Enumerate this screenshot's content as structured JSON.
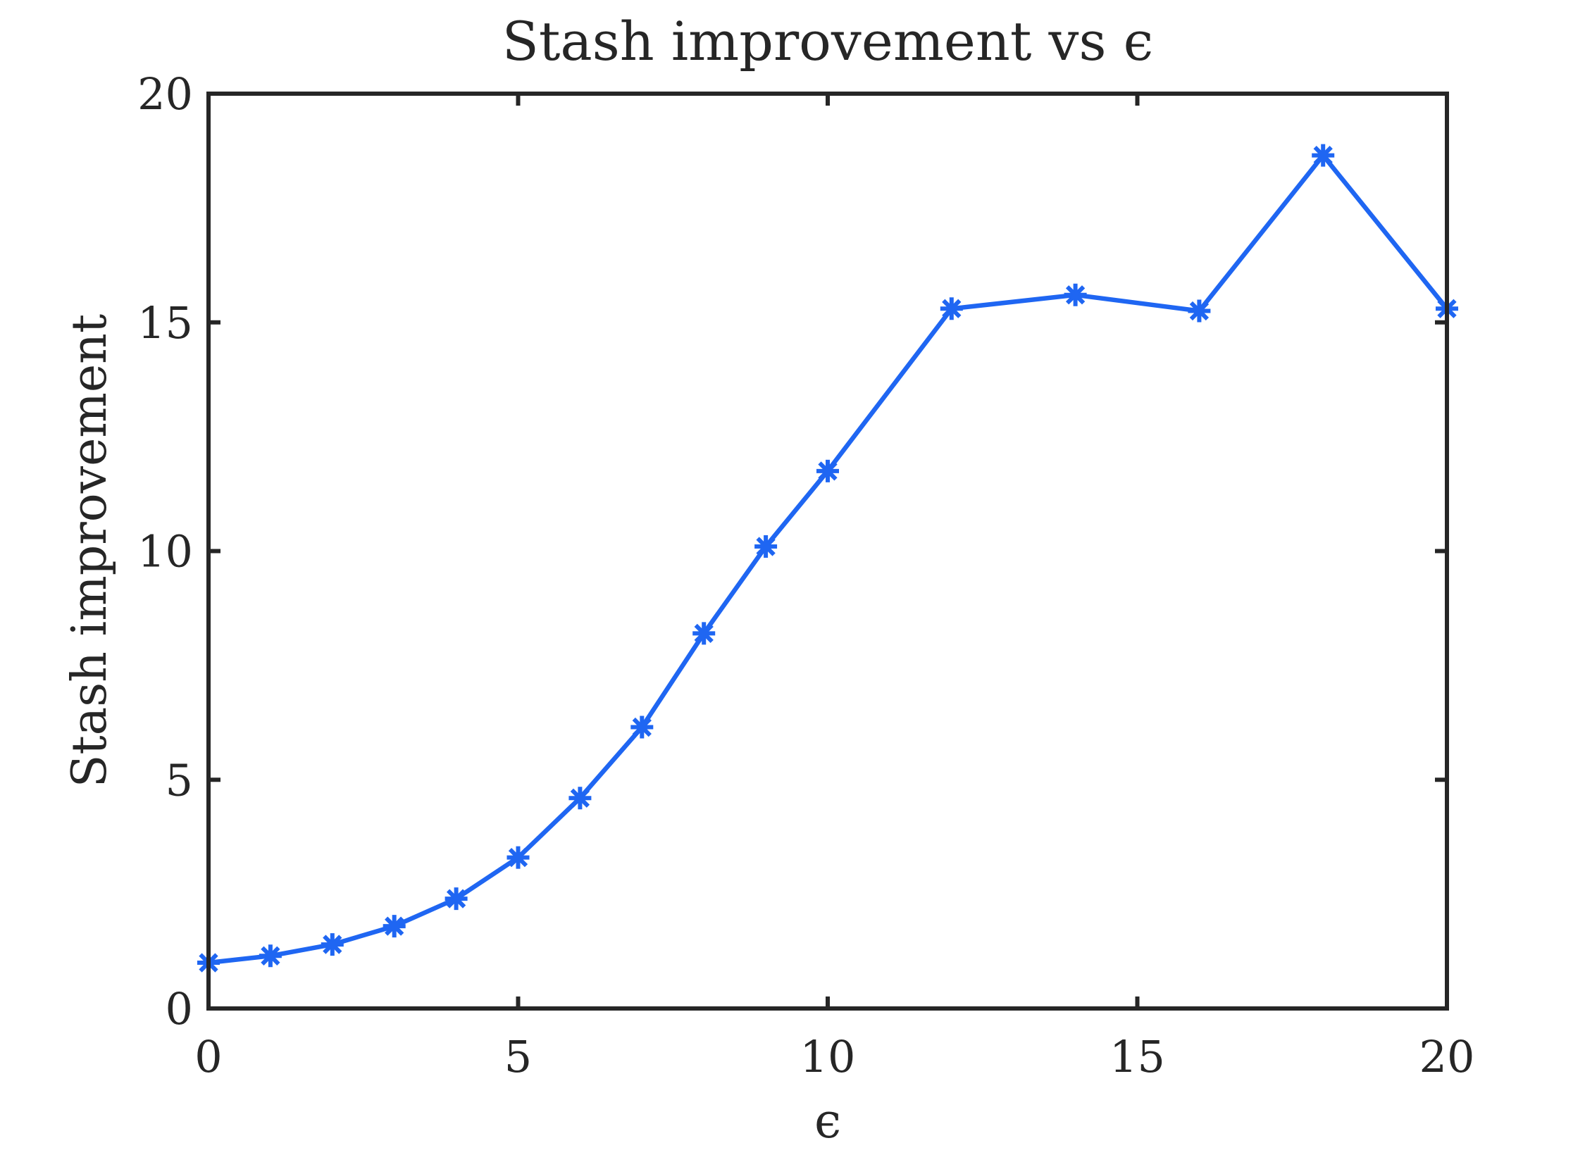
{
  "chart_data": {
    "type": "line",
    "title": "Stash improvement vs ϵ",
    "xlabel": "ϵ",
    "ylabel": "Stash improvement",
    "xlim": [
      0,
      20
    ],
    "ylim": [
      0,
      20
    ],
    "xticks": [
      0,
      5,
      10,
      15,
      20
    ],
    "yticks": [
      0,
      5,
      10,
      15,
      20
    ],
    "xtick_labels": [
      "0",
      "5",
      "10",
      "15",
      "20"
    ],
    "ytick_labels": [
      "0",
      "5",
      "10",
      "15",
      "20"
    ],
    "grid": false,
    "series": [
      {
        "x": [
          0,
          1,
          2,
          3,
          4,
          5,
          6,
          7,
          8,
          9,
          10,
          12,
          14,
          16,
          18,
          20
        ],
        "y": [
          1.0,
          1.15,
          1.4,
          1.8,
          2.4,
          3.3,
          4.6,
          6.15,
          8.2,
          10.1,
          11.75,
          15.3,
          15.6,
          15.25,
          18.65,
          15.3
        ],
        "color": "#1f66f2",
        "marker": "asterisk"
      }
    ]
  }
}
